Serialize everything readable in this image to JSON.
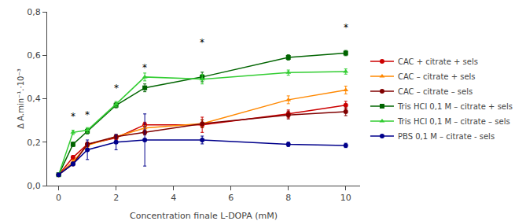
{
  "chart_data": {
    "type": "line",
    "x": [
      0,
      0.5,
      1,
      2,
      3,
      5,
      8,
      10
    ],
    "series": [
      {
        "name": "CAC + citrate + sels",
        "color": "#cc0000",
        "marker": "circle",
        "values": [
          0.05,
          0.13,
          0.19,
          0.22,
          0.28,
          0.28,
          0.33,
          0.37
        ],
        "yerr": [
          0.004,
          0.008,
          0.01,
          0.01,
          0.012,
          0.035,
          0.018,
          0.018
        ]
      },
      {
        "name": "CAC – citrate + sels",
        "color": "#ff8800",
        "marker": "triangle-up",
        "values": [
          0.05,
          0.11,
          0.185,
          0.225,
          0.265,
          0.285,
          0.395,
          0.44
        ],
        "yerr": [
          0.004,
          0.008,
          0.01,
          0.01,
          0.012,
          0.018,
          0.018,
          0.018
        ]
      },
      {
        "name": "CAC – citrate – sels",
        "color": "#800000",
        "marker": "circle",
        "values": [
          0.05,
          0.1,
          0.19,
          0.225,
          0.245,
          0.285,
          0.325,
          0.34
        ],
        "yerr": [
          0.004,
          0.008,
          0.01,
          0.01,
          0.012,
          0.018,
          0.018,
          0.018
        ]
      },
      {
        "name": "Tris HCl 0,1 M – citrate + sels",
        "color": "#006400",
        "marker": "square",
        "values": [
          0.05,
          0.19,
          0.25,
          0.37,
          0.45,
          0.5,
          0.59,
          0.61
        ],
        "yerr": [
          0.004,
          0.01,
          0.012,
          0.012,
          0.018,
          0.022,
          0.012,
          0.012
        ]
      },
      {
        "name": "Tris HCl 0,1 M – citrate – sels",
        "color": "#32cd32",
        "marker": "triangle-up",
        "values": [
          0.05,
          0.245,
          0.255,
          0.375,
          0.5,
          0.49,
          0.52,
          0.525
        ],
        "yerr": [
          0.004,
          0.01,
          0.012,
          0.012,
          0.018,
          0.022,
          0.012,
          0.012
        ]
      },
      {
        "name": "PBS 0,1 M – citrate - sels",
        "color": "#00008b",
        "marker": "circle",
        "values": [
          0.05,
          0.1,
          0.165,
          0.2,
          0.21,
          0.21,
          0.19,
          0.185
        ],
        "yerr": [
          0.004,
          0.008,
          0.045,
          0.035,
          0.12,
          0.018,
          0.01,
          0.01
        ]
      }
    ],
    "annotations": [
      {
        "x": 0.5,
        "y": 0.285,
        "text": "*"
      },
      {
        "x": 1,
        "y": 0.295,
        "text": "*"
      },
      {
        "x": 2,
        "y": 0.415,
        "text": "*"
      },
      {
        "x": 3,
        "y": 0.51,
        "text": "*"
      },
      {
        "x": 5,
        "y": 0.625,
        "text": "*"
      },
      {
        "x": 10,
        "y": 0.695,
        "text": "*"
      }
    ],
    "xlabel": "Concentration finale L-DOPA (mM)",
    "ylabel": "Δ A.min⁻¹.·10⁻³",
    "xlim": [
      -0.4,
      10.5
    ],
    "ylim": [
      0,
      0.8
    ],
    "xticks": [
      0,
      2,
      4,
      6,
      8,
      10
    ],
    "yticks": [
      {
        "value": 0,
        "label": "0,0"
      },
      {
        "value": 0.2,
        "label": "0,2"
      },
      {
        "value": 0.4,
        "label": "0,4"
      },
      {
        "value": 0.6,
        "label": "0,6"
      },
      {
        "value": 0.8,
        "label": "0,8"
      }
    ],
    "grid": false,
    "legend": "right"
  }
}
